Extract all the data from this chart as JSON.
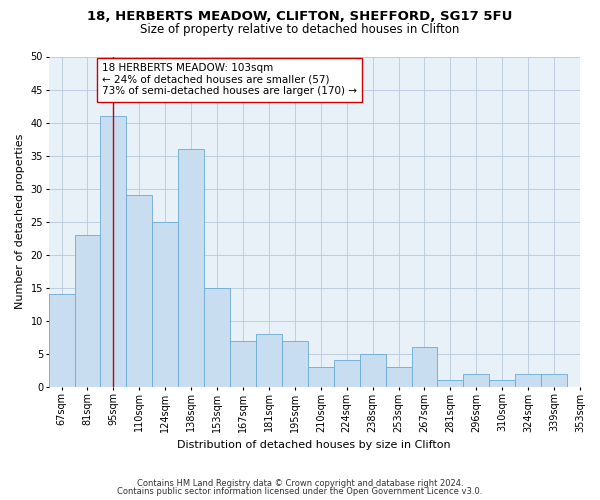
{
  "title1": "18, HERBERTS MEADOW, CLIFTON, SHEFFORD, SG17 5FU",
  "title2": "Size of property relative to detached houses in Clifton",
  "xlabel": "Distribution of detached houses by size in Clifton",
  "ylabel": "Number of detached properties",
  "bar_values": [
    14,
    23,
    41,
    29,
    25,
    36,
    15,
    7,
    8,
    7,
    3,
    4,
    5,
    3,
    6,
    1,
    2,
    1,
    2,
    2
  ],
  "bar_labels": [
    "67sqm",
    "81sqm",
    "95sqm",
    "110sqm",
    "124sqm",
    "138sqm",
    "153sqm",
    "167sqm",
    "181sqm",
    "195sqm",
    "210sqm",
    "224sqm",
    "238sqm",
    "253sqm",
    "267sqm",
    "281sqm",
    "296sqm",
    "310sqm",
    "324sqm",
    "339sqm",
    "353sqm"
  ],
  "bar_color": "#c9ddf0",
  "bar_edge_color": "#6aaad4",
  "vline_x_index": 2,
  "vline_color": "#cc0000",
  "annotation_text": "18 HERBERTS MEADOW: 103sqm\n← 24% of detached houses are smaller (57)\n73% of semi-detached houses are larger (170) →",
  "annotation_box_color": "#ffffff",
  "annotation_box_edge_color": "#cc0000",
  "ylim": [
    0,
    50
  ],
  "yticks": [
    0,
    5,
    10,
    15,
    20,
    25,
    30,
    35,
    40,
    45,
    50
  ],
  "footnote1": "Contains HM Land Registry data © Crown copyright and database right 2024.",
  "footnote2": "Contains public sector information licensed under the Open Government Licence v3.0.",
  "bg_color": "#ffffff",
  "plot_bg_color": "#e8f0f8",
  "grid_color": "#b8c8dc",
  "title1_fontsize": 9.5,
  "title2_fontsize": 8.5,
  "xlabel_fontsize": 8,
  "ylabel_fontsize": 8,
  "tick_fontsize": 7,
  "annotation_fontsize": 7.5,
  "footnote_fontsize": 6
}
